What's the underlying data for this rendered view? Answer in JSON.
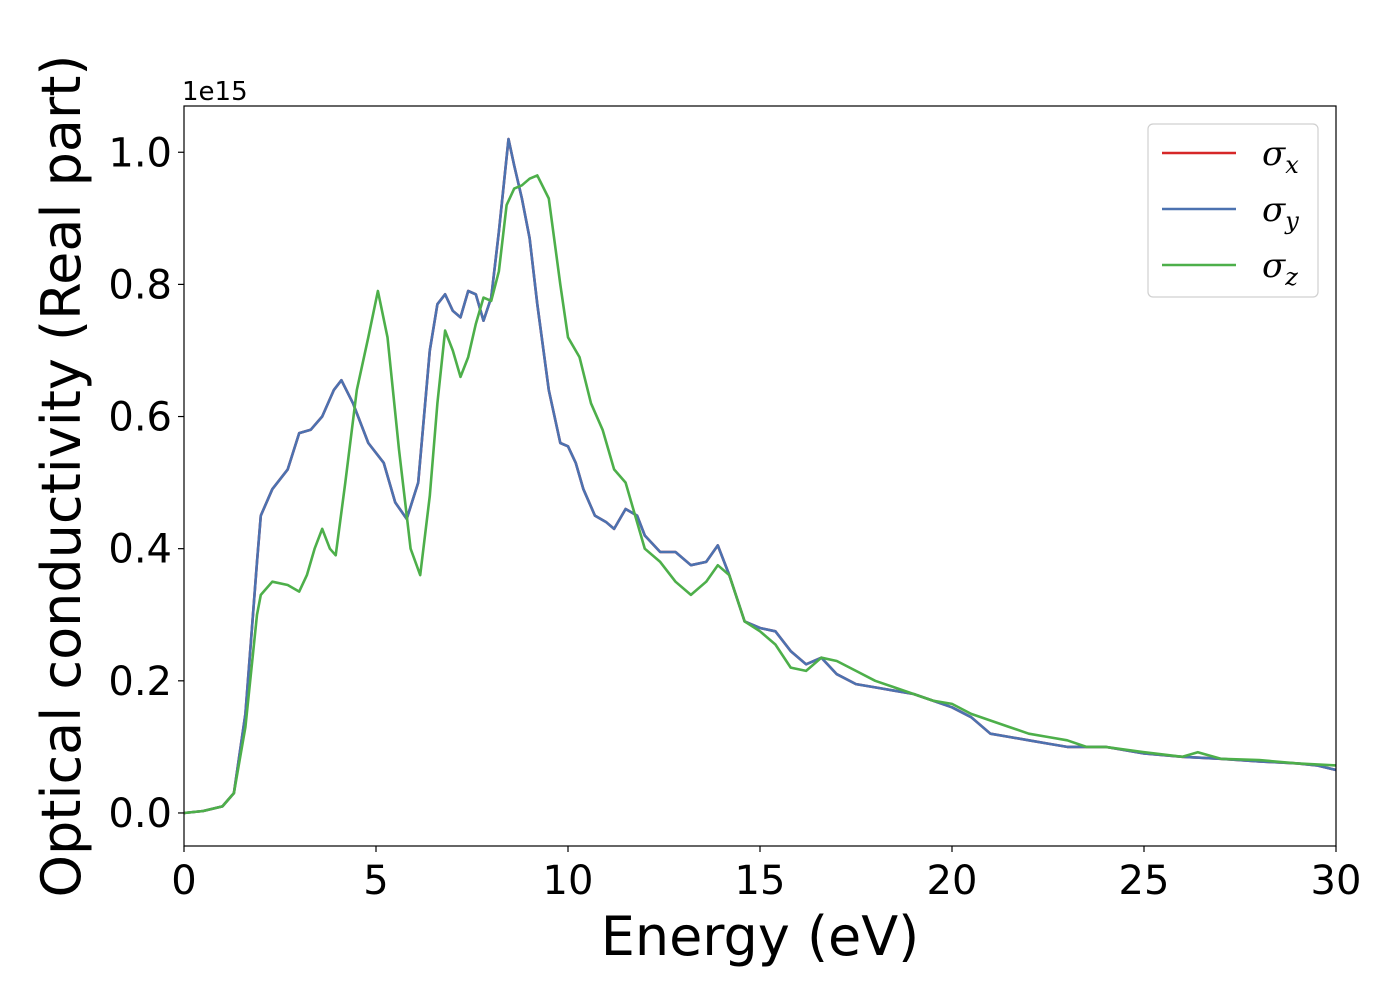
{
  "chart_data": {
    "type": "line",
    "xlabel": "Energy (eV)",
    "ylabel": "Optical conductivity (Real part)",
    "y_offset_label": "1e15",
    "xlim": [
      0,
      30
    ],
    "ylim": [
      -0.05,
      1.07
    ],
    "x_ticks": [
      0,
      5,
      10,
      15,
      20,
      25,
      30
    ],
    "x_tick_labels": [
      "0",
      "5",
      "10",
      "15",
      "20",
      "25",
      "30"
    ],
    "y_ticks": [
      0.0,
      0.2,
      0.4,
      0.6,
      0.8,
      1.0
    ],
    "y_tick_labels": [
      "0.0",
      "0.2",
      "0.4",
      "0.6",
      "0.8",
      "1.0"
    ],
    "grid": false,
    "legend_position": "top-right",
    "series": [
      {
        "name": "σx",
        "legend_main": "σ",
        "legend_sub": "x",
        "color": "#d62728",
        "x": [
          0,
          0.5,
          1.0,
          1.3,
          1.6,
          1.9,
          2.0,
          2.3,
          2.7,
          3.0,
          3.3,
          3.6,
          3.9,
          4.1,
          4.4,
          4.8,
          5.2,
          5.5,
          5.8,
          6.1,
          6.4,
          6.6,
          6.8,
          7.0,
          7.2,
          7.4,
          7.6,
          7.8,
          8.0,
          8.2,
          8.45,
          8.6,
          8.8,
          9.0,
          9.2,
          9.5,
          9.8,
          10.0,
          10.2,
          10.4,
          10.7,
          11.0,
          11.2,
          11.5,
          11.8,
          12.0,
          12.4,
          12.8,
          13.2,
          13.6,
          13.9,
          14.2,
          14.6,
          15.0,
          15.4,
          15.8,
          16.2,
          16.6,
          17.0,
          17.5,
          18.0,
          18.5,
          19.0,
          19.5,
          20.0,
          20.5,
          21.0,
          21.5,
          22.0,
          22.5,
          23.0,
          23.5,
          24.0,
          25.0,
          26.0,
          27.0,
          28.0,
          29.0,
          29.5,
          30.0
        ],
        "y": [
          0.0,
          0.003,
          0.01,
          0.03,
          0.15,
          0.38,
          0.45,
          0.49,
          0.52,
          0.575,
          0.58,
          0.6,
          0.64,
          0.655,
          0.62,
          0.56,
          0.53,
          0.47,
          0.445,
          0.5,
          0.7,
          0.77,
          0.785,
          0.76,
          0.75,
          0.79,
          0.785,
          0.745,
          0.78,
          0.88,
          1.02,
          0.98,
          0.93,
          0.87,
          0.77,
          0.64,
          0.56,
          0.555,
          0.53,
          0.49,
          0.45,
          0.44,
          0.43,
          0.46,
          0.45,
          0.42,
          0.395,
          0.395,
          0.375,
          0.38,
          0.405,
          0.36,
          0.29,
          0.28,
          0.275,
          0.245,
          0.225,
          0.235,
          0.21,
          0.195,
          0.19,
          0.185,
          0.18,
          0.17,
          0.16,
          0.145,
          0.12,
          0.115,
          0.11,
          0.105,
          0.1,
          0.1,
          0.1,
          0.09,
          0.085,
          0.082,
          0.078,
          0.075,
          0.072,
          0.065
        ]
      },
      {
        "name": "σy",
        "legend_main": "σ",
        "legend_sub": "y",
        "color": "#4c72b0",
        "x": [
          0,
          0.5,
          1.0,
          1.3,
          1.6,
          1.9,
          2.0,
          2.3,
          2.7,
          3.0,
          3.3,
          3.6,
          3.9,
          4.1,
          4.4,
          4.8,
          5.2,
          5.5,
          5.8,
          6.1,
          6.4,
          6.6,
          6.8,
          7.0,
          7.2,
          7.4,
          7.6,
          7.8,
          8.0,
          8.2,
          8.45,
          8.6,
          8.8,
          9.0,
          9.2,
          9.5,
          9.8,
          10.0,
          10.2,
          10.4,
          10.7,
          11.0,
          11.2,
          11.5,
          11.8,
          12.0,
          12.4,
          12.8,
          13.2,
          13.6,
          13.9,
          14.2,
          14.6,
          15.0,
          15.4,
          15.8,
          16.2,
          16.6,
          17.0,
          17.5,
          18.0,
          18.5,
          19.0,
          19.5,
          20.0,
          20.5,
          21.0,
          21.5,
          22.0,
          22.5,
          23.0,
          23.5,
          24.0,
          25.0,
          26.0,
          27.0,
          28.0,
          29.0,
          29.5,
          30.0
        ],
        "y": [
          0.0,
          0.003,
          0.01,
          0.03,
          0.15,
          0.38,
          0.45,
          0.49,
          0.52,
          0.575,
          0.58,
          0.6,
          0.64,
          0.655,
          0.62,
          0.56,
          0.53,
          0.47,
          0.445,
          0.5,
          0.7,
          0.77,
          0.785,
          0.76,
          0.75,
          0.79,
          0.785,
          0.745,
          0.78,
          0.88,
          1.02,
          0.98,
          0.93,
          0.87,
          0.77,
          0.64,
          0.56,
          0.555,
          0.53,
          0.49,
          0.45,
          0.44,
          0.43,
          0.46,
          0.45,
          0.42,
          0.395,
          0.395,
          0.375,
          0.38,
          0.405,
          0.36,
          0.29,
          0.28,
          0.275,
          0.245,
          0.225,
          0.235,
          0.21,
          0.195,
          0.19,
          0.185,
          0.18,
          0.17,
          0.16,
          0.145,
          0.12,
          0.115,
          0.11,
          0.105,
          0.1,
          0.1,
          0.1,
          0.09,
          0.085,
          0.082,
          0.078,
          0.075,
          0.072,
          0.065
        ]
      },
      {
        "name": "σz",
        "legend_main": "σ",
        "legend_sub": "z",
        "color": "#4daf4a",
        "x": [
          0,
          0.5,
          1.0,
          1.3,
          1.6,
          1.9,
          2.0,
          2.3,
          2.7,
          3.0,
          3.2,
          3.4,
          3.6,
          3.8,
          3.95,
          4.2,
          4.5,
          4.8,
          5.05,
          5.3,
          5.6,
          5.9,
          6.15,
          6.4,
          6.6,
          6.8,
          7.0,
          7.2,
          7.4,
          7.6,
          7.8,
          8.0,
          8.2,
          8.4,
          8.6,
          8.8,
          9.0,
          9.2,
          9.5,
          9.8,
          10.0,
          10.3,
          10.6,
          10.9,
          11.2,
          11.5,
          11.8,
          12.0,
          12.4,
          12.8,
          13.2,
          13.6,
          13.9,
          14.2,
          14.6,
          15.0,
          15.4,
          15.8,
          16.2,
          16.6,
          17.0,
          17.5,
          18.0,
          18.5,
          19.0,
          19.5,
          20.0,
          20.5,
          21.0,
          21.5,
          22.0,
          22.5,
          23.0,
          23.5,
          24.0,
          25.0,
          26.0,
          26.4,
          27.0,
          28.0,
          29.0,
          30.0
        ],
        "y": [
          0.0,
          0.003,
          0.01,
          0.03,
          0.13,
          0.3,
          0.33,
          0.35,
          0.345,
          0.335,
          0.36,
          0.4,
          0.43,
          0.4,
          0.39,
          0.5,
          0.64,
          0.72,
          0.79,
          0.72,
          0.55,
          0.4,
          0.36,
          0.48,
          0.62,
          0.73,
          0.7,
          0.66,
          0.69,
          0.74,
          0.78,
          0.775,
          0.82,
          0.92,
          0.945,
          0.95,
          0.96,
          0.965,
          0.93,
          0.8,
          0.72,
          0.69,
          0.62,
          0.58,
          0.52,
          0.5,
          0.44,
          0.4,
          0.38,
          0.35,
          0.33,
          0.35,
          0.375,
          0.36,
          0.29,
          0.275,
          0.255,
          0.22,
          0.215,
          0.235,
          0.23,
          0.215,
          0.2,
          0.19,
          0.18,
          0.17,
          0.165,
          0.15,
          0.14,
          0.13,
          0.12,
          0.115,
          0.11,
          0.1,
          0.1,
          0.092,
          0.085,
          0.092,
          0.082,
          0.08,
          0.075,
          0.072
        ]
      }
    ]
  }
}
